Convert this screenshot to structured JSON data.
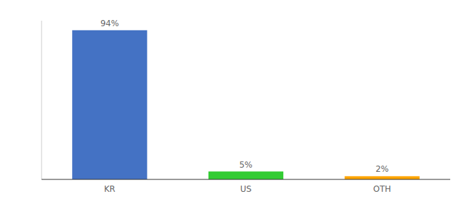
{
  "chart_data": {
    "type": "bar",
    "categories": [
      "KR",
      "US",
      "OTH"
    ],
    "values": [
      94,
      5,
      2
    ],
    "value_labels": [
      "94%",
      "5%",
      "2%"
    ],
    "colors": [
      "#4472C4",
      "#33CC33",
      "#FFA500"
    ],
    "ylim": [
      0,
      100
    ],
    "data_labels": true,
    "tick_labels": "x",
    "grid": false
  }
}
